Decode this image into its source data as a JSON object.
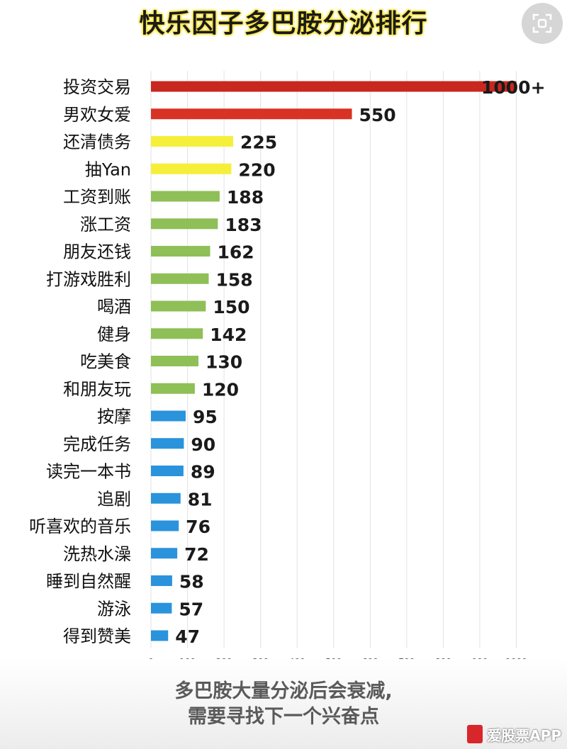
{
  "header": {
    "title": "快乐因子多巴胺分泌排行"
  },
  "chart_data": {
    "type": "bar",
    "orientation": "horizontal",
    "categories": [
      "投资交易",
      "男欢女爱",
      "还清债务",
      "抽Yan",
      "工资到账",
      "涨工资",
      "朋友还钱",
      "打游戏胜利",
      "喝酒",
      "健身",
      "吃美食",
      "和朋友玩",
      "按摩",
      "完成任务",
      "读完一本书",
      "追剧",
      "听喜欢的音乐",
      "洗热水澡",
      "睡到自然醒",
      "游泳",
      "得到赞美"
    ],
    "values": [
      1000,
      550,
      225,
      220,
      188,
      183,
      162,
      158,
      150,
      142,
      130,
      120,
      95,
      90,
      89,
      81,
      76,
      72,
      58,
      57,
      47
    ],
    "value_labels": [
      "1000+",
      "550",
      "225",
      "220",
      "188",
      "183",
      "162",
      "158",
      "150",
      "142",
      "130",
      "120",
      "95",
      "90",
      "89",
      "81",
      "76",
      "72",
      "58",
      "57",
      "47"
    ],
    "bar_colors": [
      "#c8281e",
      "#d83224",
      "#f5ef3a",
      "#f5ef3a",
      "#8fbf57",
      "#8fbf57",
      "#8fbf57",
      "#8fbf57",
      "#8fbf57",
      "#8fbf57",
      "#8fbf57",
      "#8fbf57",
      "#2a93dc",
      "#2a93dc",
      "#2a93dc",
      "#2a93dc",
      "#2a93dc",
      "#2a93dc",
      "#2a93dc",
      "#2a93dc",
      "#2a93dc"
    ],
    "xticks": [
      "0",
      "100",
      "200",
      "300",
      "400",
      "500",
      "600",
      "700",
      "800",
      "900",
      "1000"
    ],
    "xlim": [
      0,
      1000
    ],
    "grid": true,
    "title": "快乐因子多巴胺分泌排行",
    "xlabel": "",
    "ylabel": ""
  },
  "footer": {
    "caption_line1": "多巴胺大量分泌后会衰减,",
    "caption_line2": "需要寻找下一个兴奋点"
  },
  "watermark": {
    "text": "爱股票APP"
  },
  "icons": {
    "scan": "scan-icon"
  }
}
